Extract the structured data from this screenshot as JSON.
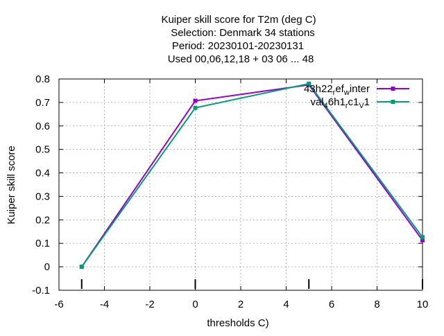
{
  "chart_data": {
    "type": "line",
    "title_lines": [
      "Kuiper skill score  for T2m (deg C)",
      "Selection: Denmark     34 stations",
      "Period: 20230101-20230131",
      "Used  00,06,12,18  + 03 06 ... 48"
    ],
    "xlabel": "thresholds C)",
    "ylabel": "Kuiper skill score",
    "xlim": [
      -6,
      10
    ],
    "ylim": [
      -0.1,
      0.8
    ],
    "xticks": [
      -6,
      -4,
      -2,
      0,
      2,
      4,
      6,
      8,
      10
    ],
    "yticks": [
      -0.1,
      0,
      0.1,
      0.2,
      0.3,
      0.4,
      0.5,
      0.6,
      0.7,
      0.8
    ],
    "xtick_labels": [
      "-6",
      "-4",
      "-2",
      "0",
      "2",
      "4",
      "6",
      "8",
      "10"
    ],
    "ytick_labels": [
      "-0.1",
      "0",
      "0.1",
      "0.2",
      "0.3",
      "0.4",
      "0.5",
      "0.6",
      "0.7",
      "0.8"
    ],
    "grid": true,
    "legend_position": "top-right",
    "threshold_markers": [
      -5,
      0,
      5,
      10
    ],
    "series": [
      {
        "name": "43h22_ref_winter",
        "name_parts": {
          "base": "43h22",
          "sub1": "r",
          "mid": "ef",
          "sub2": "w",
          "tail": "inter"
        },
        "color": "#9400d3",
        "x": [
          -5,
          0,
          5,
          10
        ],
        "y": [
          0.0,
          0.707,
          0.775,
          0.113
        ]
      },
      {
        "name": "val_46h1_rc1_v1",
        "name_parts": {
          "base": "val",
          "sub1": "4",
          "mid": "6h1",
          "sub2": "r",
          "tail": "c1",
          "sub3": "V",
          "tail2": "1"
        },
        "color": "#009e73",
        "x": [
          -5,
          0,
          5,
          10
        ],
        "y": [
          0.0,
          0.677,
          0.78,
          0.126
        ]
      }
    ]
  }
}
